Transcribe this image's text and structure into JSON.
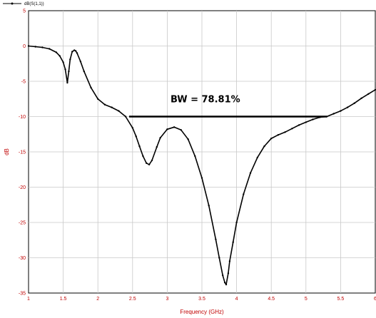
{
  "chart_data": {
    "type": "line",
    "xlabel": "Frequency (GHz)",
    "ylabel": "dB",
    "xlim": [
      1,
      6
    ],
    "ylim": [
      -35,
      5
    ],
    "xticks": [
      "1",
      "1.5",
      "2",
      "2.5",
      "3",
      "3.5",
      "4",
      "4.5",
      "5",
      "5.5",
      "6"
    ],
    "yticks": [
      "5",
      "0",
      "-5",
      "-10",
      "-15",
      "-20",
      "-25",
      "-30",
      "-35"
    ],
    "grid": true,
    "legend_position": "top-left",
    "series": [
      {
        "name": "dB(S(1,1))",
        "color": "#000000",
        "x": [
          1.0,
          1.1,
          1.2,
          1.3,
          1.4,
          1.45,
          1.5,
          1.53,
          1.56,
          1.58,
          1.6,
          1.63,
          1.66,
          1.68,
          1.7,
          1.75,
          1.8,
          1.9,
          2.0,
          2.1,
          2.2,
          2.3,
          2.4,
          2.5,
          2.55,
          2.6,
          2.65,
          2.7,
          2.74,
          2.78,
          2.85,
          2.9,
          3.0,
          3.1,
          3.2,
          3.3,
          3.4,
          3.5,
          3.6,
          3.7,
          3.75,
          3.8,
          3.83,
          3.85,
          3.88,
          3.9,
          3.95,
          4.0,
          4.1,
          4.2,
          4.3,
          4.4,
          4.5,
          4.6,
          4.7,
          4.8,
          4.9,
          5.0,
          5.1,
          5.2,
          5.3,
          5.4,
          5.5,
          5.6,
          5.7,
          5.8,
          5.9,
          6.0
        ],
        "y": [
          0.0,
          -0.1,
          -0.2,
          -0.4,
          -0.9,
          -1.4,
          -2.3,
          -3.3,
          -5.2,
          -3.6,
          -1.9,
          -0.8,
          -0.6,
          -0.7,
          -1.0,
          -2.2,
          -3.6,
          -5.9,
          -7.5,
          -8.3,
          -8.7,
          -9.2,
          -10.0,
          -11.6,
          -12.8,
          -14.2,
          -15.6,
          -16.6,
          -16.8,
          -16.2,
          -14.3,
          -13.0,
          -11.8,
          -11.5,
          -11.9,
          -13.2,
          -15.6,
          -18.7,
          -22.6,
          -27.4,
          -30.0,
          -32.5,
          -33.5,
          -33.8,
          -32.2,
          -30.5,
          -27.8,
          -25.0,
          -21.0,
          -18.0,
          -15.8,
          -14.2,
          -13.1,
          -12.6,
          -12.2,
          -11.7,
          -11.2,
          -10.8,
          -10.4,
          -10.1,
          -10.0,
          -9.6,
          -9.2,
          -8.7,
          -8.1,
          -7.4,
          -6.8,
          -6.2
        ]
      }
    ],
    "annotations": [
      {
        "type": "line",
        "x": [
          2.45,
          5.3
        ],
        "y": [
          -10,
          -10
        ],
        "text": "BW = 78.81%",
        "text_x": 3.55,
        "text_y": -8.0
      }
    ]
  }
}
